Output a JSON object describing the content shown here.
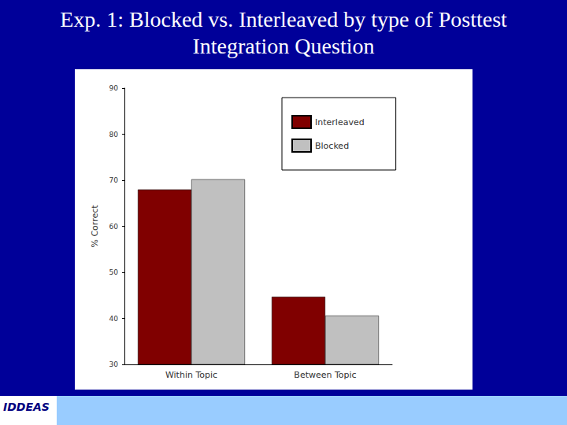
{
  "chart_data": {
    "type": "bar",
    "title": "Exp. 1: Blocked vs. Interleaved by type of Posttest Integration Question",
    "categories": [
      "Within Topic",
      "Between Topic"
    ],
    "series": [
      {
        "name": "Interleaved",
        "color": "#800000",
        "values": [
          68,
          44.7
        ]
      },
      {
        "name": "Blocked",
        "color": "#c0c0c0",
        "values": [
          70.2,
          40.6
        ]
      }
    ],
    "ylabel": "% Correct",
    "ylim": [
      30,
      90
    ],
    "yticks": [
      30,
      40,
      50,
      60,
      70,
      80,
      90
    ],
    "grid": false,
    "legend": "upper right"
  },
  "logo": "IDDEAS"
}
